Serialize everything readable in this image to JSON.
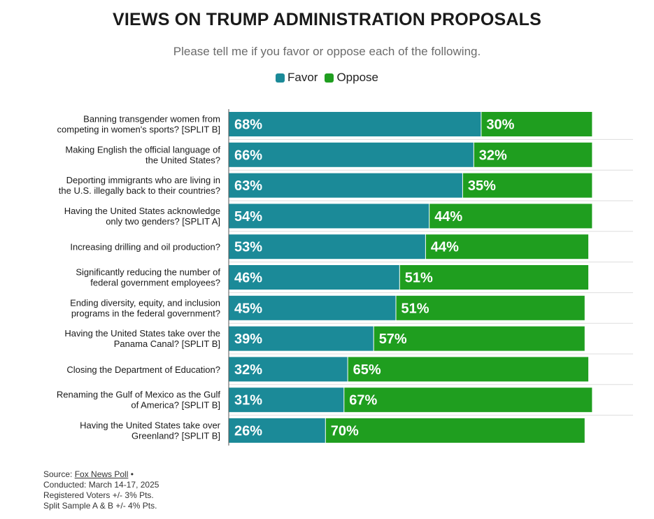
{
  "header": {
    "title": "VIEWS ON TRUMP ADMINISTRATION PROPOSALS",
    "subtitle": "Please tell me if you favor or oppose each of the following."
  },
  "legend": {
    "favor_label": "Favor",
    "oppose_label": "Oppose"
  },
  "colors": {
    "favor": "#1b8a98",
    "oppose": "#1f9e1f"
  },
  "chart_data": {
    "type": "bar",
    "orientation": "horizontal",
    "stacked": true,
    "title": "VIEWS ON TRUMP ADMINISTRATION PROPOSALS",
    "subtitle": "Please tell me if you favor or oppose each of the following.",
    "legend_position": "top",
    "categories": [
      [
        "Banning transgender women from",
        "competing in women's sports? [SPLIT B]"
      ],
      [
        "Making English the official language of",
        "the United States?"
      ],
      [
        "Deporting immigrants who are living in",
        "the U.S. illegally back to their countries?"
      ],
      [
        "Having the United States acknowledge",
        "only two genders? [SPLIT A]"
      ],
      [
        "Increasing drilling and oil production?"
      ],
      [
        "Significantly reducing the number of",
        "federal government employees?"
      ],
      [
        "Ending diversity, equity, and inclusion",
        "programs in the federal government?"
      ],
      [
        "Having the United States take over the",
        "Panama Canal? [SPLIT B]"
      ],
      [
        "Closing the Department of Education?"
      ],
      [
        "Renaming the Gulf of Mexico as the Gulf",
        "of America? [SPLIT B]"
      ],
      [
        "Having the United States take over",
        "Greenland? [SPLIT B]"
      ]
    ],
    "series": [
      {
        "name": "Favor",
        "values": [
          68,
          66,
          63,
          54,
          53,
          46,
          45,
          39,
          32,
          31,
          26
        ]
      },
      {
        "name": "Oppose",
        "values": [
          30,
          32,
          35,
          44,
          44,
          51,
          51,
          57,
          65,
          67,
          70
        ]
      }
    ],
    "value_suffix": "%",
    "xlim": [
      0,
      100
    ]
  },
  "footer": {
    "source_prefix": "Source: ",
    "source_link": "Fox News Poll",
    "source_suffix": " •",
    "conducted": "Conducted: March 14-17, 2025",
    "registered": "Registered Voters +/- 3% Pts.",
    "split": "Split Sample A & B +/- 4% Pts."
  }
}
